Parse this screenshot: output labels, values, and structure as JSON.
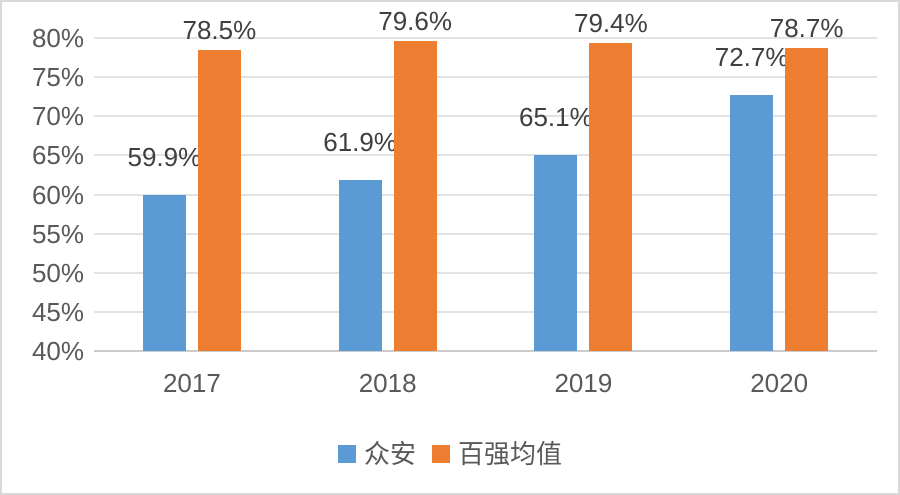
{
  "window": {
    "background": "#ffffff",
    "border_color": "#d9d9d9"
  },
  "chart_data": {
    "type": "bar",
    "title": "",
    "xlabel": "",
    "ylabel": "",
    "categories": [
      "2017",
      "2018",
      "2019",
      "2020"
    ],
    "series": [
      {
        "name": "众安",
        "color": "#5B9BD5",
        "values": [
          59.9,
          61.9,
          65.1,
          72.7
        ]
      },
      {
        "name": "百强均值",
        "color": "#ED7D31",
        "values": [
          78.5,
          79.6,
          79.4,
          78.7
        ]
      }
    ],
    "data_labels": [
      [
        "59.9%",
        "61.9%",
        "65.1%",
        "72.7%"
      ],
      [
        "78.5%",
        "79.6%",
        "79.4%",
        "78.7%"
      ]
    ],
    "ylim": [
      40,
      80
    ],
    "ytick_step": 5,
    "ytick_labels": [
      "40%",
      "45%",
      "50%",
      "55%",
      "60%",
      "65%",
      "70%",
      "75%",
      "80%"
    ],
    "grid": true,
    "legend_position": "bottom-center",
    "colors": {
      "gridline": "#e2e2e2",
      "axis_line": "#cccccc",
      "tick_text": "#595959",
      "data_label_text": "#3f3f3f",
      "legend_text": "#595959"
    }
  }
}
